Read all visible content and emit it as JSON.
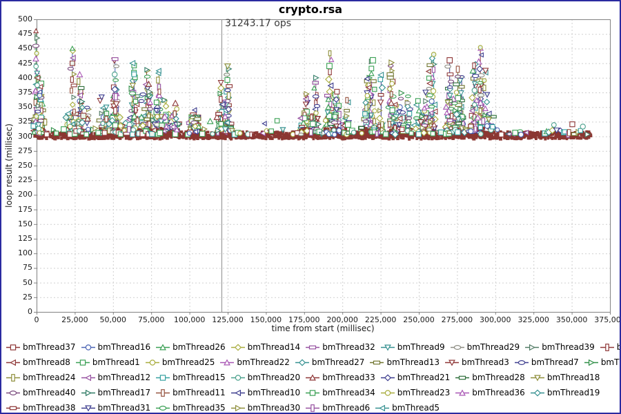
{
  "window": {
    "border_color": "#2a2aa0",
    "background": "#ffffff"
  },
  "chart_data": {
    "type": "scatter",
    "title": "crypto.rsa",
    "xlabel": "time from start (millisec)",
    "ylabel": "loop result (millisec)",
    "xlim": [
      0,
      375000
    ],
    "ylim": [
      0,
      500
    ],
    "x_tick_step": 25000,
    "y_tick_step": 25,
    "x_tick_format": "thousands-comma",
    "grid": {
      "style": "dashed",
      "color": "#cfcfcf"
    },
    "plot_border_color": "#808080",
    "tick_color": "#808080",
    "annotation": {
      "text": "31243.17 ops",
      "x": 120800,
      "line_color": "#8c8c8c",
      "text_color": "#3a3a3a"
    },
    "baseline_band": {
      "x_start": 0,
      "x_end": 362000,
      "y_center": 302,
      "y_jitter": 6,
      "color": "#8b3732"
    },
    "burst_clusters": [
      {
        "x_center": 1500,
        "x_spread": 2200,
        "y_peak": 480
      },
      {
        "x_center": 27000,
        "x_spread": 7000,
        "y_peak": 450
      },
      {
        "x_center": 49000,
        "x_spread": 6500,
        "y_peak": 432
      },
      {
        "x_center": 67000,
        "x_spread": 8000,
        "y_peak": 425
      },
      {
        "x_center": 85000,
        "x_spread": 7500,
        "y_peak": 412
      },
      {
        "x_center": 103000,
        "x_spread": 3000,
        "y_peak": 345
      },
      {
        "x_center": 122500,
        "x_spread": 3200,
        "y_peak": 420
      },
      {
        "x_center": 178000,
        "x_spread": 5000,
        "y_peak": 400
      },
      {
        "x_center": 196000,
        "x_spread": 7000,
        "y_peak": 442
      },
      {
        "x_center": 219000,
        "x_spread": 6500,
        "y_peak": 430
      },
      {
        "x_center": 237000,
        "x_spread": 6000,
        "y_peak": 426
      },
      {
        "x_center": 254000,
        "x_spread": 6000,
        "y_peak": 440
      },
      {
        "x_center": 273500,
        "x_spread": 5500,
        "y_peak": 430
      },
      {
        "x_center": 291500,
        "x_spread": 6000,
        "y_peak": 452
      }
    ],
    "legend_row_breaks": [
      9,
      9,
      8,
      8,
      6
    ],
    "series": [
      {
        "name": "bmThread37",
        "shape": "square",
        "color": "#8e3636"
      },
      {
        "name": "bmThread16",
        "shape": "circle",
        "color": "#4a64b4"
      },
      {
        "name": "bmThread26",
        "shape": "triangle-up",
        "color": "#3aa054"
      },
      {
        "name": "bmThread14",
        "shape": "diamond",
        "color": "#a8ac3c"
      },
      {
        "name": "bmThread32",
        "shape": "rect-h",
        "color": "#9650a0"
      },
      {
        "name": "bmThread9",
        "shape": "triangle-down",
        "color": "#349090"
      },
      {
        "name": "bmThread29",
        "shape": "ellipse",
        "color": "#8c8c82"
      },
      {
        "name": "bmThread39",
        "shape": "triangle-right",
        "color": "#507a64"
      },
      {
        "name": "bmThread2",
        "shape": "rect-v",
        "color": "#8e3636"
      },
      {
        "name": "bmThread8",
        "shape": "triangle-left",
        "color": "#8e3636"
      },
      {
        "name": "bmThread1",
        "shape": "square",
        "color": "#3aa054"
      },
      {
        "name": "bmThread25",
        "shape": "circle",
        "color": "#a8ac3c"
      },
      {
        "name": "bmThread22",
        "shape": "triangle-up",
        "color": "#a855b4"
      },
      {
        "name": "bmThread27",
        "shape": "diamond",
        "color": "#349090"
      },
      {
        "name": "bmThread13",
        "shape": "rect-h",
        "color": "#70752e"
      },
      {
        "name": "bmThread3",
        "shape": "triangle-down",
        "color": "#8e3636"
      },
      {
        "name": "bmThread7",
        "shape": "ellipse",
        "color": "#3c3c8e"
      },
      {
        "name": "bmThread4",
        "shape": "triangle-right",
        "color": "#2e8e46"
      },
      {
        "name": "bmThread24",
        "shape": "rect-v",
        "color": "#8e8e3a"
      },
      {
        "name": "bmThread12",
        "shape": "triangle-left",
        "color": "#9650a0"
      },
      {
        "name": "bmThread15",
        "shape": "square",
        "color": "#34a0a0"
      },
      {
        "name": "bmThread20",
        "shape": "circle",
        "color": "#4aa08c"
      },
      {
        "name": "bmThread33",
        "shape": "triangle-up",
        "color": "#8e3636"
      },
      {
        "name": "bmThread21",
        "shape": "diamond",
        "color": "#3c3c8e"
      },
      {
        "name": "bmThread28",
        "shape": "rect-h",
        "color": "#2e6e3a"
      },
      {
        "name": "bmThread18",
        "shape": "triangle-down",
        "color": "#8e8e3a"
      },
      {
        "name": "bmThread40",
        "shape": "ellipse",
        "color": "#7a4a7e"
      },
      {
        "name": "bmThread17",
        "shape": "triangle-right",
        "color": "#2e7a64"
      },
      {
        "name": "bmThread11",
        "shape": "rect-v",
        "color": "#96523f"
      },
      {
        "name": "bmThread10",
        "shape": "triangle-left",
        "color": "#3c3c8e"
      },
      {
        "name": "bmThread34",
        "shape": "square",
        "color": "#3aa054"
      },
      {
        "name": "bmThread23",
        "shape": "circle",
        "color": "#a8ac3c"
      },
      {
        "name": "bmThread36",
        "shape": "triangle-up",
        "color": "#a855b4"
      },
      {
        "name": "bmThread19",
        "shape": "diamond",
        "color": "#349090"
      },
      {
        "name": "bmThread38",
        "shape": "rect-h",
        "color": "#8e3636"
      },
      {
        "name": "bmThread31",
        "shape": "triangle-down",
        "color": "#3c3c8e"
      },
      {
        "name": "bmThread35",
        "shape": "ellipse",
        "color": "#3aa054"
      },
      {
        "name": "bmThread30",
        "shape": "triangle-right",
        "color": "#8e8e3a"
      },
      {
        "name": "bmThread6",
        "shape": "rect-v",
        "color": "#9650a0"
      },
      {
        "name": "bmThread5",
        "shape": "triangle-left",
        "color": "#349090"
      }
    ]
  }
}
